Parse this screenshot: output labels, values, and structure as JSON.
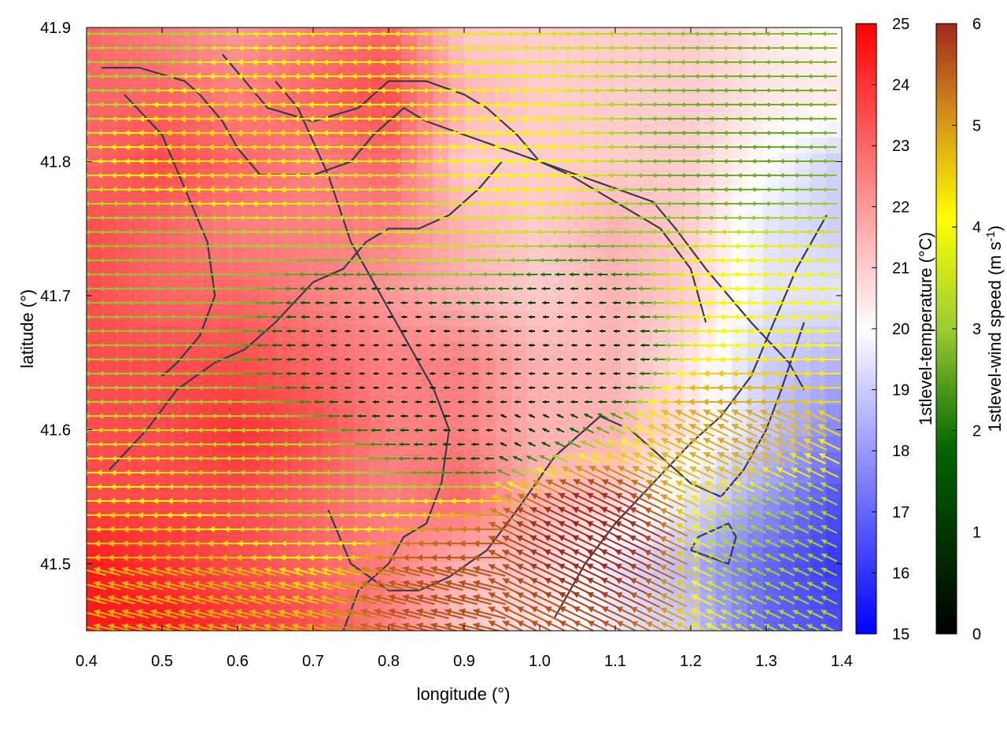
{
  "chart_data": {
    "type": "heatmap",
    "title": "",
    "xlabel": "longitude (°)",
    "ylabel": "latitude (°)",
    "xlim": [
      0.4,
      1.4
    ],
    "ylim": [
      41.45,
      41.9
    ],
    "xticks": [
      0.4,
      0.5,
      0.6,
      0.7,
      0.8,
      0.9,
      1.0,
      1.1,
      1.2,
      1.3,
      1.4
    ],
    "yticks": [
      41.5,
      41.6,
      41.7,
      41.8,
      41.9
    ],
    "grid": false,
    "temperature": {
      "colorbar_label": "1stlevel-temperature (°C)",
      "range": [
        15,
        25
      ],
      "ticks": [
        15,
        16,
        17,
        18,
        19,
        20,
        21,
        22,
        23,
        24,
        25
      ],
      "colormap": [
        "#0000ff",
        "#ffffff",
        "#ff0000"
      ],
      "lon": [
        0.4,
        0.5,
        0.6,
        0.7,
        0.8,
        0.9,
        1.0,
        1.1,
        1.2,
        1.3,
        1.4
      ],
      "lat": [
        41.9,
        41.85,
        41.8,
        41.75,
        41.7,
        41.65,
        41.6,
        41.55,
        41.5,
        41.45
      ],
      "values": [
        [
          23.0,
          22.5,
          22.0,
          22.5,
          23.0,
          21.0,
          21.0,
          21.0,
          21.0,
          20.5,
          20.0
        ],
        [
          23.0,
          23.0,
          22.5,
          23.0,
          23.5,
          21.5,
          21.0,
          21.0,
          21.0,
          20.5,
          20.5
        ],
        [
          23.0,
          23.5,
          23.0,
          22.5,
          23.0,
          21.0,
          21.0,
          21.0,
          21.0,
          20.0,
          19.0
        ],
        [
          23.5,
          23.0,
          22.5,
          22.5,
          22.5,
          21.5,
          21.0,
          21.5,
          21.0,
          19.5,
          19.0
        ],
        [
          23.5,
          23.0,
          23.0,
          22.5,
          22.0,
          21.5,
          21.0,
          21.5,
          21.0,
          19.5,
          19.5
        ],
        [
          23.5,
          23.5,
          23.5,
          23.0,
          22.5,
          22.5,
          21.5,
          21.5,
          20.5,
          19.0,
          18.5
        ],
        [
          23.5,
          23.5,
          24.0,
          23.5,
          22.5,
          22.5,
          21.5,
          21.5,
          20.5,
          19.0,
          17.5
        ],
        [
          23.5,
          23.5,
          23.5,
          23.0,
          22.5,
          23.0,
          21.5,
          21.0,
          19.5,
          18.0,
          16.5
        ],
        [
          24.5,
          24.0,
          23.5,
          23.0,
          22.5,
          21.5,
          21.0,
          19.5,
          18.5,
          17.0,
          16.0
        ],
        [
          24.5,
          24.5,
          24.0,
          23.5,
          22.5,
          21.0,
          20.5,
          19.5,
          19.0,
          17.0,
          16.5
        ]
      ]
    },
    "wind": {
      "colorbar_label": "1stlevel-wind speed (m s-1)",
      "colorbar_label_parts": {
        "base": "1stlevel-wind speed (m s",
        "sup": "-1",
        "end": ")"
      },
      "range": [
        0,
        6
      ],
      "ticks": [
        0,
        1,
        2,
        3,
        4,
        5,
        6
      ],
      "colormap": [
        "#000000",
        "#006400",
        "#9acd32",
        "#ffff00",
        "#d2901a",
        "#a0281a"
      ],
      "direction_from": "east",
      "speed_anchors": [
        {
          "lon": 0.45,
          "lat": 41.88,
          "speed": 2.5
        },
        {
          "lon": 0.57,
          "lat": 41.82,
          "speed": 4.0
        },
        {
          "lon": 0.95,
          "lat": 41.8,
          "speed": 3.5
        },
        {
          "lon": 1.25,
          "lat": 41.8,
          "speed": 2.0
        },
        {
          "lon": 0.5,
          "lat": 41.72,
          "speed": 2.3
        },
        {
          "lon": 0.8,
          "lat": 41.66,
          "speed": 0.4
        },
        {
          "lon": 0.95,
          "lat": 41.62,
          "speed": 0.6
        },
        {
          "lon": 1.05,
          "lat": 41.66,
          "speed": 0.5
        },
        {
          "lon": 1.28,
          "lat": 41.7,
          "speed": 3.5
        },
        {
          "lon": 1.25,
          "lat": 41.6,
          "speed": 4.5
        },
        {
          "lon": 1.32,
          "lat": 41.52,
          "speed": 2.5
        },
        {
          "lon": 1.07,
          "lat": 41.52,
          "speed": 6.0
        },
        {
          "lon": 0.9,
          "lat": 41.47,
          "speed": 5.5
        },
        {
          "lon": 0.55,
          "lat": 41.48,
          "speed": 4.5
        },
        {
          "lon": 0.65,
          "lat": 41.56,
          "speed": 2.7
        },
        {
          "lon": 0.85,
          "lat": 41.76,
          "speed": 3.0
        }
      ]
    },
    "contours": [
      {
        "lon": [
          0.42,
          0.47,
          0.53,
          0.55,
          0.58,
          0.6,
          0.63,
          0.7,
          0.75,
          0.78,
          0.82,
          0.85,
          0.9,
          0.95,
          1.0,
          1.05,
          1.1,
          1.15,
          1.18,
          1.22,
          1.28,
          1.33,
          1.35
        ],
        "lat": [
          41.87,
          41.87,
          41.86,
          41.85,
          41.83,
          41.81,
          41.79,
          41.79,
          41.8,
          41.82,
          41.84,
          41.83,
          41.82,
          41.81,
          41.8,
          41.79,
          41.78,
          41.77,
          41.75,
          41.72,
          41.68,
          41.65,
          41.63
        ]
      },
      {
        "lon": [
          0.58,
          0.61,
          0.64,
          0.7,
          0.76,
          0.8,
          0.85,
          0.9,
          0.93,
          0.97,
          1.0,
          1.04,
          1.1,
          1.16,
          1.2,
          1.22
        ],
        "lat": [
          41.88,
          41.86,
          41.84,
          41.83,
          41.84,
          41.86,
          41.86,
          41.85,
          41.84,
          41.82,
          41.8,
          41.79,
          41.77,
          41.75,
          41.72,
          41.68
        ]
      },
      {
        "lon": [
          0.45,
          0.5,
          0.53,
          0.56,
          0.57,
          0.55,
          0.52,
          0.5
        ],
        "lat": [
          41.85,
          41.82,
          41.78,
          41.74,
          41.7,
          41.67,
          41.65,
          41.64
        ]
      },
      {
        "lon": [
          0.43,
          0.48,
          0.52,
          0.57,
          0.61,
          0.65,
          0.7,
          0.74,
          0.77,
          0.8,
          0.84,
          0.88,
          0.92,
          0.95
        ],
        "lat": [
          41.57,
          41.6,
          41.63,
          41.65,
          41.66,
          41.68,
          41.71,
          41.72,
          41.74,
          41.75,
          41.75,
          41.76,
          41.78,
          41.8
        ]
      },
      {
        "lon": [
          0.65,
          0.68,
          0.72,
          0.75,
          0.78,
          0.8,
          0.83,
          0.86,
          0.88,
          0.87,
          0.85,
          0.82,
          0.8,
          0.76,
          0.74
        ],
        "lat": [
          41.86,
          41.84,
          41.79,
          41.74,
          41.71,
          41.69,
          41.66,
          41.63,
          41.6,
          41.56,
          41.53,
          41.52,
          41.5,
          41.48,
          41.45
        ]
      },
      {
        "lon": [
          0.72,
          0.75,
          0.8,
          0.84,
          0.88,
          0.93,
          0.97,
          1.02,
          1.08,
          1.12,
          1.16,
          1.2,
          1.24,
          1.27,
          1.3,
          1.32,
          1.35
        ],
        "lat": [
          41.54,
          41.5,
          41.48,
          41.48,
          41.49,
          41.51,
          41.54,
          41.58,
          41.61,
          41.6,
          41.58,
          41.56,
          41.55,
          41.57,
          41.6,
          41.63,
          41.68
        ]
      },
      {
        "lon": [
          1.02,
          1.06,
          1.1,
          1.15,
          1.2,
          1.24,
          1.28,
          1.31,
          1.34,
          1.38
        ],
        "lat": [
          41.46,
          41.5,
          41.53,
          41.56,
          41.59,
          41.61,
          41.64,
          41.68,
          41.72,
          41.76
        ]
      },
      {
        "lon": [
          1.2,
          1.25,
          1.26,
          1.25,
          1.21,
          1.2
        ],
        "lat": [
          41.51,
          41.5,
          41.52,
          41.53,
          41.52,
          41.51
        ]
      }
    ]
  }
}
